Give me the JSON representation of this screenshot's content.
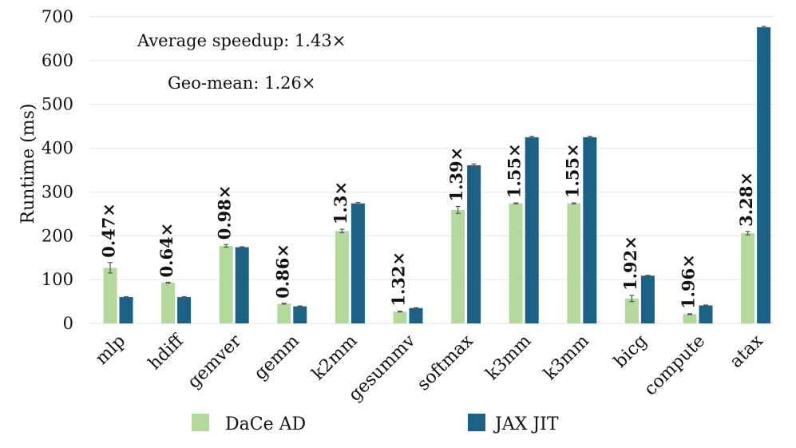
{
  "chart_data": {
    "type": "bar",
    "ylabel": "Runtime (ms)",
    "xlabel": "",
    "ylim": [
      0,
      700
    ],
    "yticks": [
      0,
      100,
      200,
      300,
      400,
      500,
      600,
      700
    ],
    "grid": true,
    "categories": [
      "mlp",
      "hdiff",
      "gemver",
      "gemm",
      "k2mm",
      "gesummv",
      "softmax",
      "k3mm",
      "k3mm",
      "bicg",
      "compute",
      "atax"
    ],
    "series": [
      {
        "name": "DaCe AD",
        "color": "#b3d99c",
        "values": [
          127,
          93,
          177,
          45,
          211,
          27,
          259,
          274,
          274,
          57,
          21,
          206
        ],
        "errors": [
          12,
          1,
          3,
          1,
          4,
          1,
          8,
          1,
          1,
          7,
          1,
          4
        ]
      },
      {
        "name": "JAX JIT",
        "color": "#1a6185",
        "values": [
          60,
          60,
          174,
          39,
          274,
          35,
          361,
          425,
          425,
          109,
          41,
          676
        ],
        "errors": [
          1,
          1,
          1,
          1,
          2,
          1,
          3,
          2,
          2,
          1,
          1,
          2
        ]
      }
    ],
    "speedups": [
      "0.47×",
      "0.64×",
      "0.98×",
      "0.86×",
      "1.3×",
      "1.32×",
      "1.39×",
      "1.55×",
      "1.55×",
      "1.92×",
      "1.96×",
      "3.28×"
    ],
    "annotations": [
      "Average speedup: 1.43×",
      "Geo-mean: 1.26×"
    ],
    "legend_position": "bottom"
  }
}
